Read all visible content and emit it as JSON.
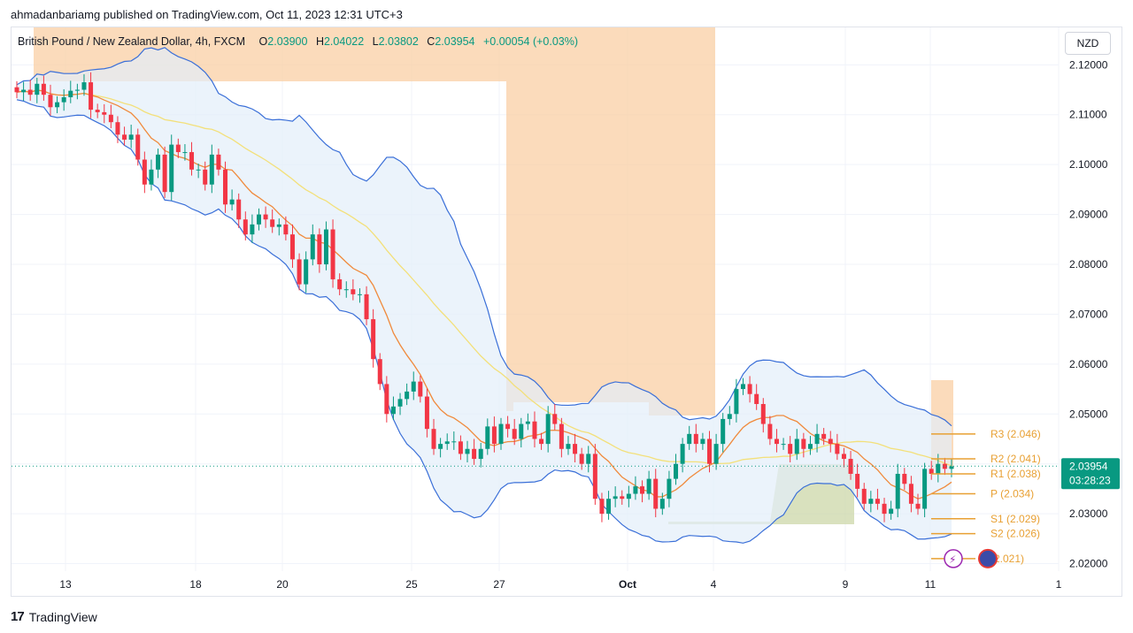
{
  "header": {
    "published": "ahmadanbariamg published on TradingView.com, Oct 11, 2023 12:31 UTC+3"
  },
  "legend": {
    "symbol": "British Pound / New Zealand Dollar, 4h, FXCM",
    "o_key": "O",
    "o_val": "2.03900",
    "h_key": "H",
    "h_val": "2.04022",
    "l_key": "L",
    "l_val": "2.03802",
    "c_key": "C",
    "c_val": "2.03954",
    "change": "+0.00054 (+0.03%)"
  },
  "currency_button": "NZD",
  "price_tag": {
    "price": "2.03954",
    "countdown": "03:28:23"
  },
  "footer": {
    "logo": "17",
    "brand": "TradingView"
  },
  "colors": {
    "up": "#089981",
    "down": "#f23645",
    "band": "#3a6fd8",
    "band_fill": "#e3eef9",
    "ma_fast": "#f08a3c",
    "ma_slow": "#f3e07a",
    "pivot": "#e8a033",
    "zone": "#f9cfa4",
    "zone_green": "#c9d4a3"
  },
  "chart_data": {
    "type": "candlestick",
    "ylim": [
      2.0185,
      2.1275
    ],
    "y_ticks": [
      "2.12000",
      "2.11000",
      "2.10000",
      "2.09000",
      "2.08000",
      "2.07000",
      "2.06000",
      "2.05000",
      "2.04000",
      "2.03000",
      "2.02000"
    ],
    "x_ticks": [
      "13",
      "18",
      "20",
      "25",
      "27",
      "Oct",
      "4",
      "9",
      "11",
      "1"
    ],
    "pivots": [
      {
        "label": "R3 (2.046)",
        "value": 2.046
      },
      {
        "label": "R2 (2.041)",
        "value": 2.041
      },
      {
        "label": "R1 (2.038)",
        "value": 2.038
      },
      {
        "label": "P (2.034)",
        "value": 2.034
      },
      {
        "label": "S1 (2.029)",
        "value": 2.029
      },
      {
        "label": "S2 (2.026)",
        "value": 2.026
      },
      {
        "label": "(2.021)",
        "value": 2.021
      }
    ],
    "close_series": [
      2.1145,
      2.115,
      2.114,
      2.1162,
      2.114,
      2.1115,
      2.1125,
      2.1135,
      2.1148,
      2.115,
      2.1165,
      2.111,
      2.1105,
      2.11,
      2.1085,
      2.106,
      2.105,
      2.106,
      2.101,
      2.096,
      2.099,
      2.102,
      2.0945,
      2.104,
      2.1025,
      2.1025,
      2.099,
      2.099,
      2.096,
      2.102,
      2.099,
      2.092,
      2.093,
      2.089,
      2.086,
      2.088,
      2.09,
      2.089,
      2.0875,
      2.088,
      2.086,
      2.081,
      2.076,
      2.081,
      2.086,
      2.08,
      2.087,
      2.077,
      2.075,
      2.075,
      2.074,
      2.074,
      2.069,
      2.061,
      2.056,
      2.05,
      2.0515,
      2.053,
      2.0545,
      2.0565,
      2.0535,
      2.047,
      2.043,
      2.044,
      2.0445,
      2.0445,
      2.042,
      2.043,
      2.041,
      2.043,
      2.0475,
      2.044,
      2.048,
      2.047,
      2.045,
      2.048,
      2.0485,
      2.045,
      2.044,
      2.05,
      2.048,
      2.043,
      2.044,
      2.042,
      2.04,
      2.042,
      2.033,
      2.03,
      2.033,
      2.0335,
      2.033,
      2.034,
      2.0355,
      2.034,
      2.037,
      2.031,
      2.033,
      2.037,
      2.04,
      2.044,
      2.046,
      2.044,
      2.045,
      2.04,
      2.044,
      2.049,
      2.05,
      2.055,
      2.056,
      2.054,
      2.052,
      2.048,
      2.045,
      2.044,
      2.044,
      2.042,
      2.045,
      2.043,
      2.044,
      2.046,
      2.045,
      2.044,
      2.042,
      2.041,
      2.038,
      2.035,
      2.032,
      2.033,
      2.032,
      2.03,
      2.031,
      2.038,
      2.036,
      2.032,
      2.031,
      2.039,
      2.038,
      2.04,
      2.039,
      2.0395
    ]
  }
}
